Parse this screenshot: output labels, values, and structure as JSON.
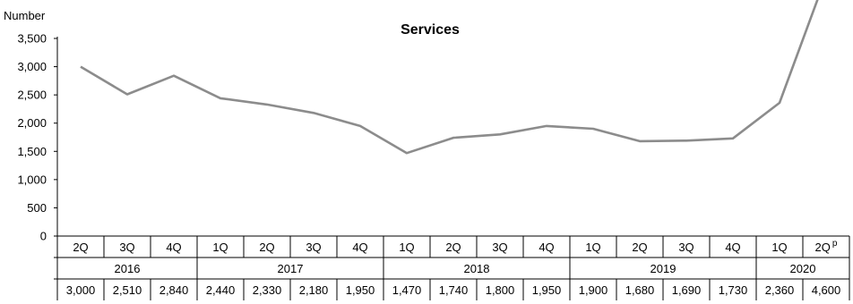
{
  "chart_data": {
    "type": "line",
    "title": "Services",
    "ylabel": "Number",
    "ylim": [
      0,
      3500
    ],
    "yticks": [
      "0",
      "500",
      "1,000",
      "1,500",
      "2,000",
      "2,500",
      "3,000",
      "3,500"
    ],
    "yticks_values": [
      0,
      500,
      1000,
      1500,
      2000,
      2500,
      3000,
      3500
    ],
    "grid": false,
    "line_color": "#8c8c8c",
    "categories": [
      "2Q",
      "3Q",
      "4Q",
      "1Q",
      "2Q",
      "3Q",
      "4Q",
      "1Q",
      "2Q",
      "3Q",
      "4Q",
      "1Q",
      "2Q",
      "3Q",
      "4Q",
      "1Q",
      "2Q"
    ],
    "last_category_suffix": "p",
    "years": [
      {
        "label": "2016",
        "span": 3
      },
      {
        "label": "2017",
        "span": 4
      },
      {
        "label": "2018",
        "span": 4
      },
      {
        "label": "2019",
        "span": 4
      },
      {
        "label": "2020",
        "span": 2
      }
    ],
    "series": [
      {
        "values": [
          3000,
          2510,
          2840,
          2440,
          2330,
          2180,
          1950,
          1470,
          1740,
          1800,
          1950,
          1900,
          1680,
          1690,
          1730,
          2360,
          4600
        ]
      }
    ],
    "value_labels": [
      "3,000",
      "2,510",
      "2,840",
      "2,440",
      "2,330",
      "2,180",
      "1,950",
      "1,470",
      "1,740",
      "1,800",
      "1,950",
      "1,900",
      "1,680",
      "1,690",
      "1,730",
      "2,360",
      "4,600"
    ]
  }
}
